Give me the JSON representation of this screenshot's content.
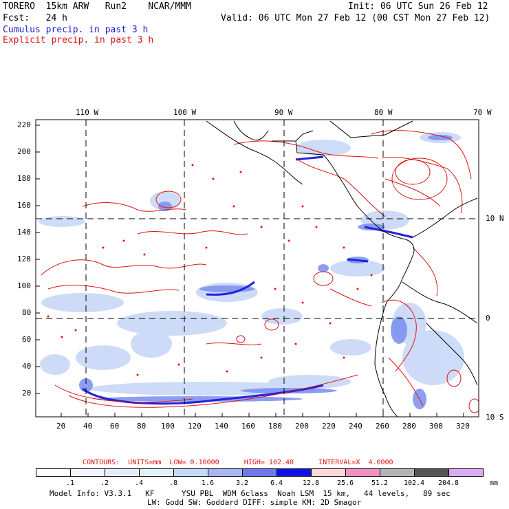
{
  "header": {
    "left_line1": "TORERO  15km ARW   Run2    NCAR/MMM",
    "left_line2": "Fcst:   24 h",
    "right_line1": "Init: 06 UTC Sun 26 Feb 12",
    "right_line2": "Valid: 06 UTC Mon 27 Feb 12 (00 CST Mon 27 Feb 12)",
    "cumulus_label": "Cumulus precip. in past 3 h",
    "explicit_label": "Explicit precip. in past 3 h"
  },
  "map": {
    "top_lon_labels": [
      "110 W",
      "100 W",
      "90 W",
      "80 W",
      "70 W"
    ],
    "right_lat_labels": [
      "10 N",
      "0",
      "10 S"
    ],
    "y_tick_labels": [
      "220",
      "200",
      "180",
      "160",
      "140",
      "120",
      "100",
      "80",
      "60",
      "40",
      "20"
    ],
    "x_tick_labels": [
      "20",
      "40",
      "60",
      "80",
      "100",
      "120",
      "140",
      "160",
      "180",
      "200",
      "220",
      "240",
      "260",
      "280",
      "300",
      "320"
    ],
    "colors": {
      "explicit_contour": "#dd1111",
      "cumulus_light": "#c8d8f8",
      "cumulus_mid": "#7a8ef0",
      "cumulus_dark": "#2222dd",
      "coast": "#000000"
    }
  },
  "legend": {
    "contours_text": "CONTOURS:  UNITS=mm  LOW= 0.10000      HIGH= 102.40      INTERVAL=X  4.0000",
    "colorbar": [
      {
        "label": ".1",
        "color": "#ffffff"
      },
      {
        "label": ".2",
        "color": "#f2f5ff"
      },
      {
        "label": ".4",
        "color": "#e6ecff"
      },
      {
        "label": ".8",
        "color": "#e0f2f2"
      },
      {
        "label": "1.6",
        "color": "#c6d8f8"
      },
      {
        "label": "3.2",
        "color": "#a8b6f4"
      },
      {
        "label": "6.4",
        "color": "#6c78ee"
      },
      {
        "label": "12.8",
        "color": "#1010e6"
      },
      {
        "label": "25.6",
        "color": "#fcd8d8"
      },
      {
        "label": "51.2",
        "color": "#f290c0"
      },
      {
        "label": "102.4",
        "color": "#b4b4b4"
      },
      {
        "label": "204.8",
        "color": "#555555"
      },
      {
        "label": "",
        "color": "#d9aaf5"
      }
    ],
    "unit": "mm"
  },
  "footer": {
    "line1": "Model Info: V3.3.1   KF      YSU PBL  WDM 6class  Noah LSM  15 km,   44 levels,   89 sec",
    "line2": "LW: Godd SW: Goddard DIFF: simple KM: 2D Smagor"
  }
}
